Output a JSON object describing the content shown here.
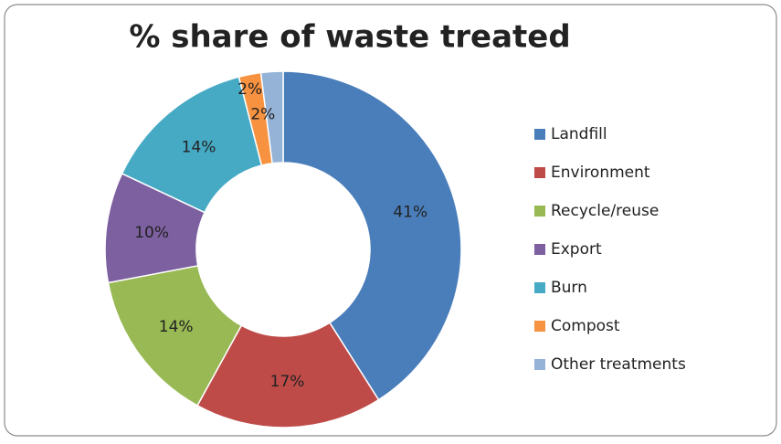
{
  "chart_data": {
    "type": "donut",
    "title": "% share of waste treated",
    "categories": [
      "Landfill",
      "Environment",
      "Recycle/reuse",
      "Export",
      "Burn",
      "Compost",
      "Other treatments"
    ],
    "values": [
      41,
      17,
      14,
      10,
      14,
      2,
      2
    ],
    "value_labels": [
      "41%",
      "17%",
      "14%",
      "10%",
      "14%",
      "2%",
      "2%"
    ],
    "colors": [
      "#4a7ebb",
      "#be4b48",
      "#98b954",
      "#7d60a0",
      "#46aac5",
      "#f69240",
      "#95b3d7"
    ],
    "legend": "right"
  }
}
